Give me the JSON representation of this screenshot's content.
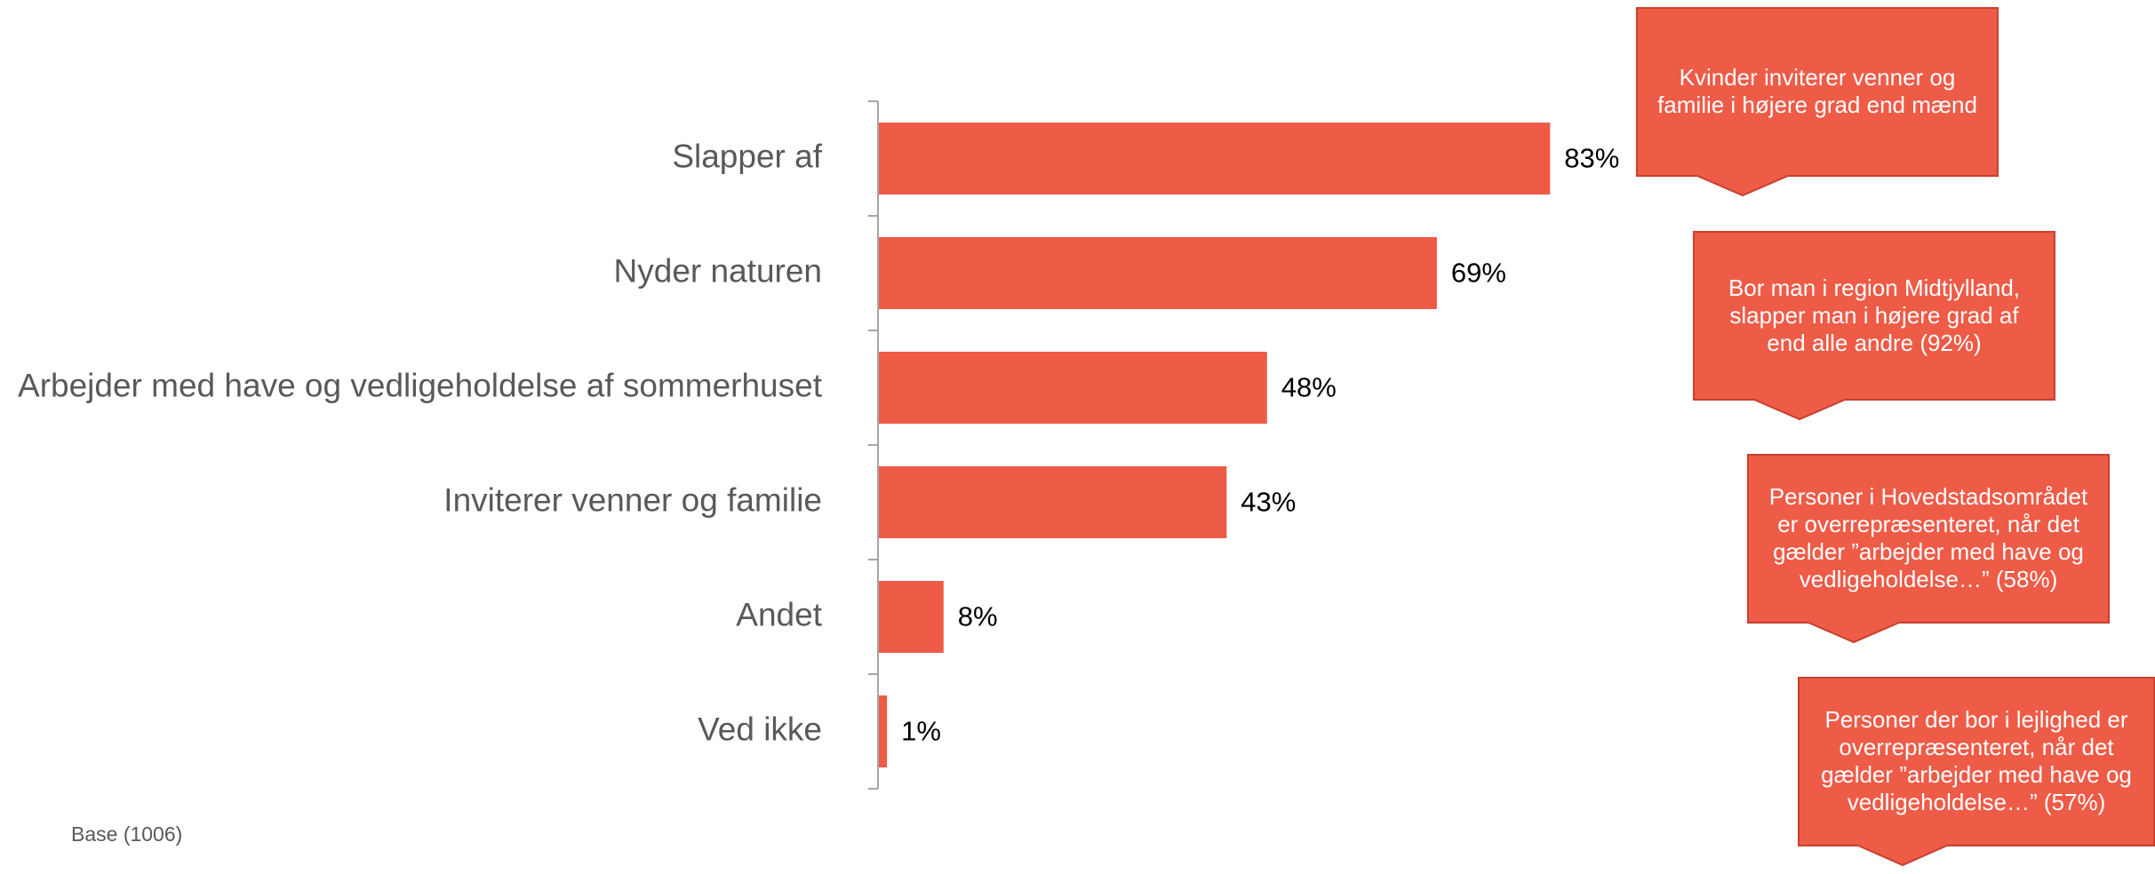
{
  "chart_data": {
    "type": "bar",
    "orientation": "horizontal",
    "categories": [
      "Slapper af",
      "Nyder naturen",
      "Arbejder med have og vedligeholdelse af sommerhuset",
      "Inviterer venner og familie",
      "Andet",
      "Ved ikke"
    ],
    "values": [
      83,
      69,
      48,
      43,
      8,
      1
    ],
    "value_labels": [
      "83%",
      "69%",
      "48%",
      "43%",
      "8%",
      "1%"
    ],
    "xlim": [
      0,
      100
    ],
    "unit": "%",
    "grid": false,
    "bar_color": "#EE5B47"
  },
  "footnote": "Base (1006)",
  "callouts": [
    {
      "text": "Kvinder inviterer venner og familie i højere grad end mænd"
    },
    {
      "text": "Bor man i region Midtjylland, slapper man i højere grad af end alle andre (92%)"
    },
    {
      "text": "Personer i Hovedstadsområdet er overrepræsenteret, når det gælder ”arbejder med have og vedligeholdelse…” (58%)"
    },
    {
      "text": "Personer der bor i lejlighed er overrepræsenteret, når det gælder ”arbejder med have og vedligeholdelse…” (57%)"
    }
  ],
  "colors": {
    "callout_fill": "#EE5B47",
    "callout_border": "#C8402F",
    "axis": "#A6A6A6"
  }
}
